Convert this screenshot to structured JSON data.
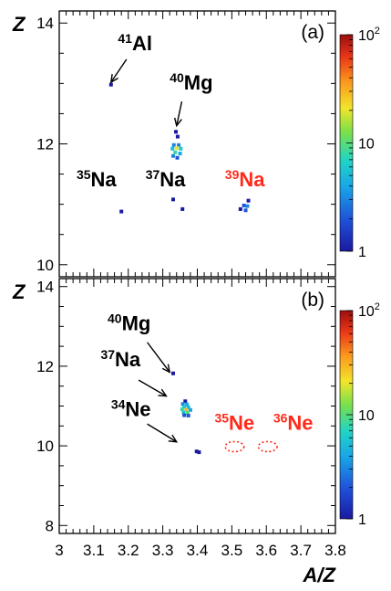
{
  "colors": {
    "highlight": "#ff2a1a",
    "frame": "#000000",
    "background": "#ffffff"
  },
  "chart_data": [
    {
      "type": "scatter",
      "panel_tag": "(a)",
      "ylabel": "Z",
      "xlim": [
        3.0,
        3.8
      ],
      "ylim": [
        9.8,
        14.2
      ],
      "yticks": [
        10,
        12,
        14
      ],
      "grid": false,
      "colorbar": {
        "scale": "log",
        "range": [
          1,
          100
        ],
        "ticks": [
          {
            "value": 1,
            "base": "1",
            "exp": ""
          },
          {
            "value": 10,
            "base": "10",
            "exp": ""
          },
          {
            "value": 100,
            "base": "10",
            "exp": "2"
          }
        ]
      },
      "labels": [
        {
          "mass": "41",
          "symbol": "Al",
          "x": 3.17,
          "y": 13.55,
          "color": "#000000"
        },
        {
          "mass": "40",
          "symbol": "Mg",
          "x": 3.32,
          "y": 12.9,
          "color": "#000000"
        },
        {
          "mass": "35",
          "symbol": "Na",
          "x": 3.05,
          "y": 11.3,
          "color": "#000000"
        },
        {
          "mass": "37",
          "symbol": "Na",
          "x": 3.25,
          "y": 11.3,
          "color": "#000000"
        },
        {
          "mass": "39",
          "symbol": "Na",
          "x": 3.48,
          "y": 11.3,
          "color": "#ff2a1a"
        }
      ],
      "arrows": [
        {
          "from": [
            3.195,
            13.4
          ],
          "to": [
            3.15,
            13.02
          ]
        },
        {
          "from": [
            3.355,
            12.7
          ],
          "to": [
            3.34,
            12.3
          ]
        }
      ],
      "points": [
        {
          "x": 3.15,
          "y": 12.98,
          "count": 1
        },
        {
          "x": 3.338,
          "y": 12.2,
          "count": 1
        },
        {
          "x": 3.343,
          "y": 12.12,
          "count": 1
        },
        {
          "x": 3.332,
          "y": 11.98,
          "count": 3
        },
        {
          "x": 3.346,
          "y": 11.98,
          "count": 3
        },
        {
          "x": 3.328,
          "y": 11.92,
          "count": 5
        },
        {
          "x": 3.34,
          "y": 11.93,
          "count": 20
        },
        {
          "x": 3.352,
          "y": 11.92,
          "count": 6
        },
        {
          "x": 3.336,
          "y": 11.86,
          "count": 8
        },
        {
          "x": 3.35,
          "y": 11.84,
          "count": 4
        },
        {
          "x": 3.33,
          "y": 11.8,
          "count": 3
        },
        {
          "x": 3.342,
          "y": 11.77,
          "count": 2
        },
        {
          "x": 3.33,
          "y": 11.08,
          "count": 1
        },
        {
          "x": 3.357,
          "y": 10.92,
          "count": 1
        },
        {
          "x": 3.18,
          "y": 10.88,
          "count": 1
        },
        {
          "x": 3.548,
          "y": 11.06,
          "count": 1
        },
        {
          "x": 3.535,
          "y": 10.98,
          "count": 2
        },
        {
          "x": 3.545,
          "y": 10.97,
          "count": 3
        },
        {
          "x": 3.525,
          "y": 10.92,
          "count": 1
        },
        {
          "x": 3.54,
          "y": 10.9,
          "count": 2
        }
      ]
    },
    {
      "type": "scatter",
      "panel_tag": "(b)",
      "xlabel": "A/Z",
      "ylabel": "Z",
      "xlim": [
        3.0,
        3.8
      ],
      "ylim": [
        7.8,
        14.2
      ],
      "xticks": [
        3,
        3.1,
        3.2,
        3.3,
        3.4,
        3.5,
        3.6,
        3.7,
        3.8
      ],
      "yticks": [
        8,
        10,
        12,
        14
      ],
      "grid": false,
      "colorbar": {
        "scale": "log",
        "range": [
          1,
          100
        ],
        "ticks": [
          {
            "value": 1,
            "base": "1",
            "exp": ""
          },
          {
            "value": 10,
            "base": "10",
            "exp": ""
          },
          {
            "value": 100,
            "base": "10",
            "exp": "2"
          }
        ]
      },
      "labels": [
        {
          "mass": "40",
          "symbol": "Mg",
          "x": 3.14,
          "y": 12.9,
          "color": "#000000"
        },
        {
          "mass": "37",
          "symbol": "Na",
          "x": 3.12,
          "y": 12.0,
          "color": "#000000"
        },
        {
          "mass": "34",
          "symbol": "Ne",
          "x": 3.15,
          "y": 10.75,
          "color": "#000000"
        },
        {
          "mass": "35",
          "symbol": "Ne",
          "x": 3.45,
          "y": 10.4,
          "color": "#ff2a1a"
        },
        {
          "mass": "36",
          "symbol": "Ne",
          "x": 3.62,
          "y": 10.4,
          "color": "#ff2a1a"
        }
      ],
      "arrows": [
        {
          "from": [
            3.255,
            12.6
          ],
          "to": [
            3.32,
            11.85
          ]
        },
        {
          "from": [
            3.23,
            11.65
          ],
          "to": [
            3.31,
            11.25
          ]
        },
        {
          "from": [
            3.255,
            10.55
          ],
          "to": [
            3.34,
            10.1
          ]
        }
      ],
      "circles": [
        {
          "x": 3.508,
          "y": 9.98,
          "r": 0.17
        },
        {
          "x": 3.604,
          "y": 9.98,
          "r": 0.17
        }
      ],
      "points": [
        {
          "x": 3.33,
          "y": 11.82,
          "count": 1
        },
        {
          "x": 3.365,
          "y": 11.12,
          "count": 1
        },
        {
          "x": 3.358,
          "y": 11.05,
          "count": 3
        },
        {
          "x": 3.37,
          "y": 11.04,
          "count": 4
        },
        {
          "x": 3.362,
          "y": 10.98,
          "count": 6
        },
        {
          "x": 3.374,
          "y": 10.97,
          "count": 5
        },
        {
          "x": 3.356,
          "y": 10.92,
          "count": 8
        },
        {
          "x": 3.368,
          "y": 10.9,
          "count": 30
        },
        {
          "x": 3.38,
          "y": 10.9,
          "count": 4
        },
        {
          "x": 3.36,
          "y": 10.84,
          "count": 6
        },
        {
          "x": 3.372,
          "y": 10.83,
          "count": 10
        },
        {
          "x": 3.362,
          "y": 10.77,
          "count": 2
        },
        {
          "x": 3.374,
          "y": 10.76,
          "count": 2
        },
        {
          "x": 3.398,
          "y": 9.86,
          "count": 1
        },
        {
          "x": 3.405,
          "y": 9.84,
          "count": 1
        }
      ]
    }
  ]
}
